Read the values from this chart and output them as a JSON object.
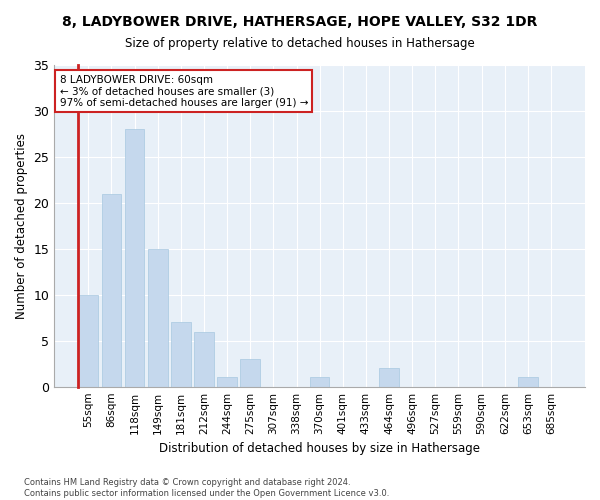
{
  "title": "8, LADYBOWER DRIVE, HATHERSAGE, HOPE VALLEY, S32 1DR",
  "subtitle": "Size of property relative to detached houses in Hathersage",
  "xlabel": "Distribution of detached houses by size in Hathersage",
  "ylabel": "Number of detached properties",
  "bar_color": "#c5d8ed",
  "bar_edge_color": "#a8c8e0",
  "highlight_color": "#cc2222",
  "background_color": "#e8f0f8",
  "grid_color": "#ffffff",
  "categories": [
    "55sqm",
    "86sqm",
    "118sqm",
    "149sqm",
    "181sqm",
    "212sqm",
    "244sqm",
    "275sqm",
    "307sqm",
    "338sqm",
    "370sqm",
    "401sqm",
    "433sqm",
    "464sqm",
    "496sqm",
    "527sqm",
    "559sqm",
    "590sqm",
    "622sqm",
    "653sqm",
    "685sqm"
  ],
  "values": [
    10,
    21,
    28,
    15,
    7,
    6,
    1,
    3,
    0,
    0,
    1,
    0,
    0,
    2,
    0,
    0,
    0,
    0,
    0,
    1,
    0
  ],
  "ylim": [
    0,
    35
  ],
  "yticks": [
    0,
    5,
    10,
    15,
    20,
    25,
    30,
    35
  ],
  "annotation_line1": "8 LADYBOWER DRIVE: 60sqm",
  "annotation_line2": "← 3% of detached houses are smaller (3)",
  "annotation_line3": "97% of semi-detached houses are larger (91) →",
  "footer_line1": "Contains HM Land Registry data © Crown copyright and database right 2024.",
  "footer_line2": "Contains public sector information licensed under the Open Government Licence v3.0."
}
